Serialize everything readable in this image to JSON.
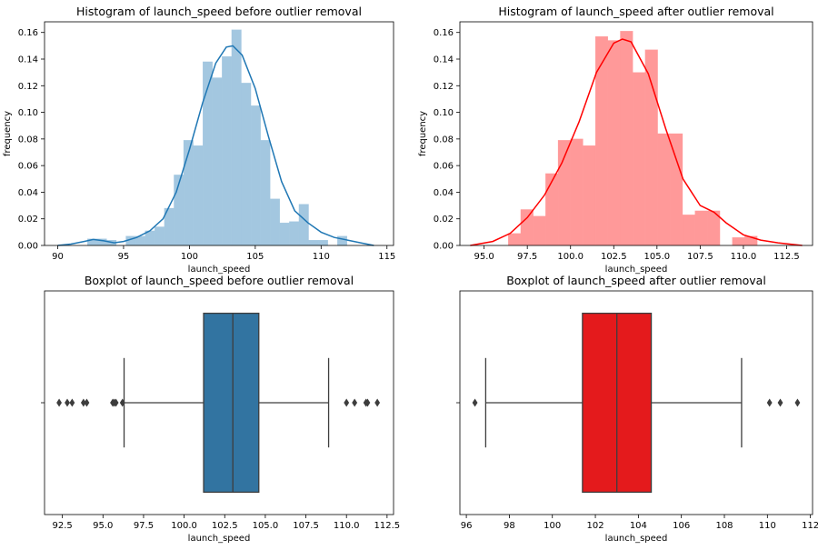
{
  "chart_data": [
    {
      "type": "histogram",
      "title": "Histogram of launch_speed before outlier removal",
      "xlabel": "launch_speed",
      "ylabel": "frequency",
      "xlim": [
        89,
        115.5
      ],
      "ylim": [
        0,
        0.168
      ],
      "xticks": [
        90,
        95,
        100,
        105,
        110,
        115
      ],
      "yticks": [
        0.0,
        0.02,
        0.04,
        0.06,
        0.08,
        0.1,
        0.12,
        0.14,
        0.16
      ],
      "bar_color": "#a3c7e0",
      "kde_color": "#1f77b4",
      "bins": [
        {
          "x0": 92.26,
          "x1": 92.99,
          "value": 0.005
        },
        {
          "x0": 92.99,
          "x1": 93.72,
          "value": 0.005
        },
        {
          "x0": 93.72,
          "x1": 94.45,
          "value": 0.004
        },
        {
          "x0": 94.45,
          "x1": 95.18,
          "value": 0.0
        },
        {
          "x0": 95.18,
          "x1": 95.91,
          "value": 0.007
        },
        {
          "x0": 95.91,
          "x1": 96.64,
          "value": 0.007
        },
        {
          "x0": 96.64,
          "x1": 97.37,
          "value": 0.011
        },
        {
          "x0": 97.37,
          "x1": 98.1,
          "value": 0.014
        },
        {
          "x0": 98.1,
          "x1": 98.83,
          "value": 0.028
        },
        {
          "x0": 98.83,
          "x1": 99.56,
          "value": 0.053
        },
        {
          "x0": 99.56,
          "x1": 100.29,
          "value": 0.079
        },
        {
          "x0": 100.29,
          "x1": 101.02,
          "value": 0.075
        },
        {
          "x0": 101.02,
          "x1": 101.75,
          "value": 0.138
        },
        {
          "x0": 101.75,
          "x1": 102.48,
          "value": 0.126
        },
        {
          "x0": 102.48,
          "x1": 103.21,
          "value": 0.142
        },
        {
          "x0": 103.21,
          "x1": 103.94,
          "value": 0.162
        },
        {
          "x0": 103.94,
          "x1": 104.67,
          "value": 0.122
        },
        {
          "x0": 104.67,
          "x1": 105.4,
          "value": 0.105
        },
        {
          "x0": 105.4,
          "x1": 106.13,
          "value": 0.079
        },
        {
          "x0": 106.13,
          "x1": 106.86,
          "value": 0.035
        },
        {
          "x0": 106.86,
          "x1": 107.59,
          "value": 0.017
        },
        {
          "x0": 107.59,
          "x1": 108.32,
          "value": 0.018
        },
        {
          "x0": 108.32,
          "x1": 109.05,
          "value": 0.031
        },
        {
          "x0": 109.05,
          "x1": 109.78,
          "value": 0.004
        },
        {
          "x0": 109.78,
          "x1": 110.51,
          "value": 0.004
        },
        {
          "x0": 110.51,
          "x1": 111.24,
          "value": 0.0
        },
        {
          "x0": 111.24,
          "x1": 111.97,
          "value": 0.007
        }
      ],
      "kde": [
        {
          "x": 90.0,
          "y": 0.0
        },
        {
          "x": 91.0,
          "y": 0.001
        },
        {
          "x": 92.0,
          "y": 0.003
        },
        {
          "x": 92.7,
          "y": 0.0045
        },
        {
          "x": 93.5,
          "y": 0.0035
        },
        {
          "x": 94.3,
          "y": 0.002
        },
        {
          "x": 95.0,
          "y": 0.003
        },
        {
          "x": 96.0,
          "y": 0.006
        },
        {
          "x": 97.0,
          "y": 0.011
        },
        {
          "x": 98.0,
          "y": 0.02
        },
        {
          "x": 99.0,
          "y": 0.04
        },
        {
          "x": 100.0,
          "y": 0.072
        },
        {
          "x": 101.0,
          "y": 0.107
        },
        {
          "x": 102.0,
          "y": 0.137
        },
        {
          "x": 102.8,
          "y": 0.149
        },
        {
          "x": 103.3,
          "y": 0.15
        },
        {
          "x": 104.0,
          "y": 0.143
        },
        {
          "x": 105.0,
          "y": 0.118
        },
        {
          "x": 106.0,
          "y": 0.082
        },
        {
          "x": 107.0,
          "y": 0.048
        },
        {
          "x": 108.0,
          "y": 0.026
        },
        {
          "x": 109.0,
          "y": 0.017
        },
        {
          "x": 110.0,
          "y": 0.01
        },
        {
          "x": 111.0,
          "y": 0.006
        },
        {
          "x": 112.0,
          "y": 0.004
        },
        {
          "x": 113.0,
          "y": 0.002
        },
        {
          "x": 114.0,
          "y": 0.0
        }
      ]
    },
    {
      "type": "histogram",
      "title": "Histogram of launch_speed after outlier removal",
      "xlabel": "launch_speed",
      "ylabel": "frequency",
      "xlim": [
        93.6,
        114.0
      ],
      "ylim": [
        0,
        0.168
      ],
      "xticks": [
        95.0,
        97.5,
        100.0,
        102.5,
        105.0,
        107.5,
        110.0,
        112.5
      ],
      "yticks": [
        0.0,
        0.02,
        0.04,
        0.06,
        0.08,
        0.1,
        0.12,
        0.14,
        0.16
      ],
      "bar_color": "#ff9999",
      "kde_color": "#ff0000",
      "bins": [
        {
          "x0": 96.4,
          "x1": 97.12,
          "value": 0.009
        },
        {
          "x0": 97.12,
          "x1": 97.84,
          "value": 0.027
        },
        {
          "x0": 97.84,
          "x1": 98.56,
          "value": 0.022
        },
        {
          "x0": 98.56,
          "x1": 99.28,
          "value": 0.054
        },
        {
          "x0": 99.28,
          "x1": 100.0,
          "value": 0.079
        },
        {
          "x0": 100.0,
          "x1": 100.72,
          "value": 0.08
        },
        {
          "x0": 100.72,
          "x1": 101.44,
          "value": 0.075
        },
        {
          "x0": 101.44,
          "x1": 102.16,
          "value": 0.157
        },
        {
          "x0": 102.16,
          "x1": 102.88,
          "value": 0.154
        },
        {
          "x0": 102.88,
          "x1": 103.6,
          "value": 0.161
        },
        {
          "x0": 103.6,
          "x1": 104.32,
          "value": 0.13
        },
        {
          "x0": 104.32,
          "x1": 105.04,
          "value": 0.147
        },
        {
          "x0": 105.04,
          "x1": 105.76,
          "value": 0.084
        },
        {
          "x0": 105.76,
          "x1": 106.48,
          "value": 0.084
        },
        {
          "x0": 106.48,
          "x1": 107.2,
          "value": 0.023
        },
        {
          "x0": 107.2,
          "x1": 107.92,
          "value": 0.026
        },
        {
          "x0": 107.92,
          "x1": 108.64,
          "value": 0.026
        },
        {
          "x0": 108.64,
          "x1": 109.36,
          "value": 0.0
        },
        {
          "x0": 109.36,
          "x1": 110.08,
          "value": 0.006
        },
        {
          "x0": 110.08,
          "x1": 110.8,
          "value": 0.007
        }
      ],
      "kde": [
        {
          "x": 94.2,
          "y": 0.0
        },
        {
          "x": 95.5,
          "y": 0.003
        },
        {
          "x": 96.5,
          "y": 0.009
        },
        {
          "x": 97.5,
          "y": 0.021
        },
        {
          "x": 98.5,
          "y": 0.038
        },
        {
          "x": 99.5,
          "y": 0.062
        },
        {
          "x": 100.5,
          "y": 0.093
        },
        {
          "x": 101.5,
          "y": 0.13
        },
        {
          "x": 102.5,
          "y": 0.152
        },
        {
          "x": 103.0,
          "y": 0.155
        },
        {
          "x": 103.5,
          "y": 0.153
        },
        {
          "x": 104.5,
          "y": 0.129
        },
        {
          "x": 105.5,
          "y": 0.088
        },
        {
          "x": 106.5,
          "y": 0.05
        },
        {
          "x": 107.5,
          "y": 0.03
        },
        {
          "x": 108.3,
          "y": 0.025
        },
        {
          "x": 109.0,
          "y": 0.017
        },
        {
          "x": 110.0,
          "y": 0.008
        },
        {
          "x": 111.0,
          "y": 0.004
        },
        {
          "x": 112.0,
          "y": 0.002
        },
        {
          "x": 113.4,
          "y": 0.0
        }
      ]
    },
    {
      "type": "boxplot",
      "title": "Boxplot of launch_speed before outlier removal",
      "xlabel": "launch_speed",
      "xlim": [
        91.4,
        112.9
      ],
      "xticks": [
        92.5,
        95.0,
        97.5,
        100.0,
        102.5,
        105.0,
        107.5,
        110.0,
        112.5
      ],
      "box_color": "#3274a1",
      "whisker_low": 96.3,
      "q1": 101.2,
      "median": 103.0,
      "q3": 104.6,
      "whisker_high": 108.9,
      "outliers": [
        92.3,
        92.8,
        93.1,
        93.8,
        94.0,
        95.6,
        95.7,
        95.8,
        96.2,
        110.0,
        110.5,
        111.2,
        111.3,
        111.9
      ]
    },
    {
      "type": "boxplot",
      "title": "Boxplot of launch_speed after outlier removal",
      "xlabel": "launch_speed",
      "xlim": [
        95.7,
        112.1
      ],
      "xticks": [
        96,
        98,
        100,
        102,
        104,
        106,
        108,
        110,
        112
      ],
      "box_color": "#e41a1c",
      "whisker_low": 96.9,
      "q1": 101.4,
      "median": 103.0,
      "q3": 104.6,
      "whisker_high": 108.8,
      "outliers": [
        96.4,
        110.1,
        110.6,
        111.4
      ]
    }
  ]
}
